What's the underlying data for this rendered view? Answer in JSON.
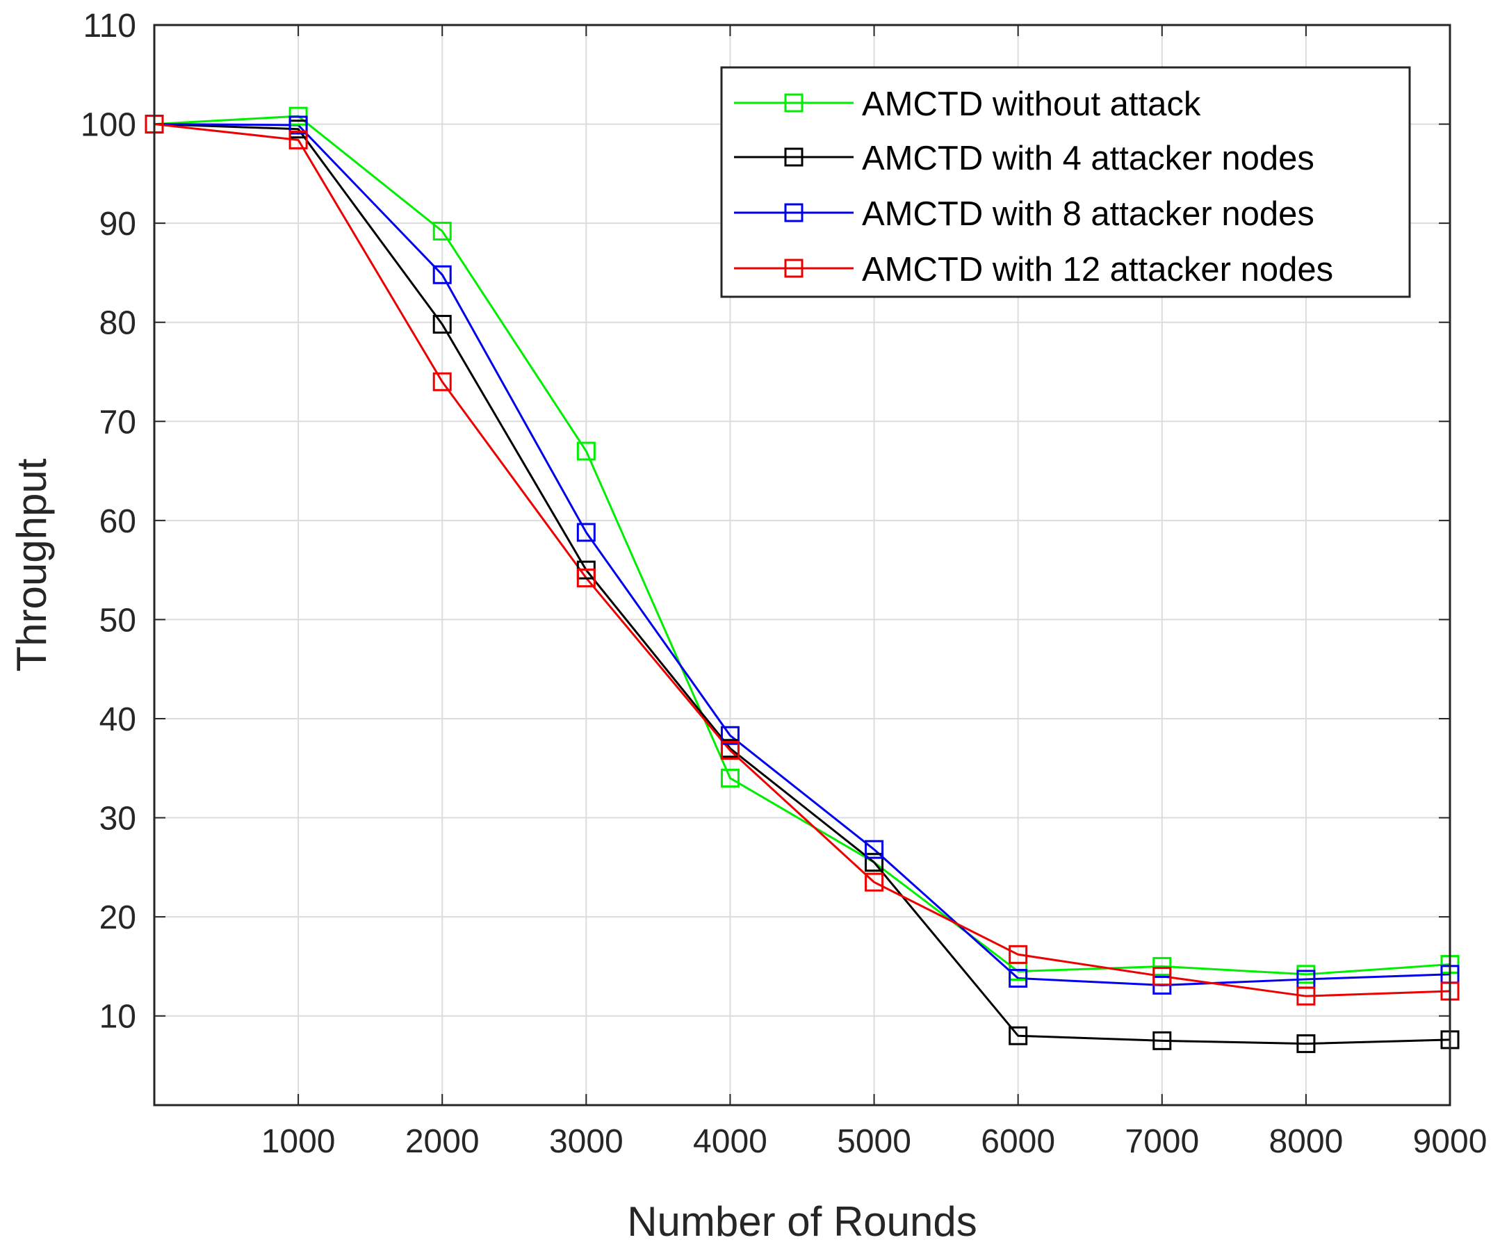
{
  "chart_data": {
    "type": "line",
    "title": "",
    "xlabel": "Number of Rounds",
    "ylabel": "Throughput",
    "x": [
      0,
      1000,
      2000,
      3000,
      4000,
      5000,
      6000,
      7000,
      8000,
      9000
    ],
    "xlim": [
      0,
      9000
    ],
    "ylim": [
      1,
      110
    ],
    "xticks": [
      1000,
      2000,
      3000,
      4000,
      5000,
      6000,
      7000,
      8000,
      9000
    ],
    "xtick_labels": [
      "1000",
      "2000",
      "3000",
      "4000",
      "5000",
      "6000",
      "7000",
      "8000",
      "9000"
    ],
    "yticks": [
      10,
      20,
      30,
      40,
      50,
      60,
      70,
      80,
      90,
      100,
      110
    ],
    "ytick_labels": [
      "10",
      "20",
      "30",
      "40",
      "50",
      "60",
      "70",
      "80",
      "90",
      "100",
      "110"
    ],
    "grid": true,
    "legend_position": "top-right",
    "marker": "square",
    "series": [
      {
        "name": "AMCTD without attack",
        "color": "#00ee00",
        "values": [
          100,
          100.8,
          89.2,
          67,
          34,
          25.5,
          14.5,
          15,
          14.2,
          15.2
        ]
      },
      {
        "name": "AMCTD with 4 attacker nodes",
        "color": "#000000",
        "values": [
          100,
          99.5,
          79.8,
          55,
          37,
          25.5,
          8,
          7.5,
          7.2,
          7.6
        ]
      },
      {
        "name": "AMCTD with 8 attacker nodes",
        "color": "#0000ee",
        "values": [
          100,
          99.9,
          84.8,
          58.8,
          38.3,
          26.8,
          13.8,
          13.1,
          13.7,
          14.2
        ]
      },
      {
        "name": "AMCTD with 12 attacker nodes",
        "color": "#ee0000",
        "values": [
          100,
          98.4,
          74,
          54.2,
          36.8,
          23.5,
          16.2,
          14,
          12,
          12.5
        ]
      }
    ]
  }
}
